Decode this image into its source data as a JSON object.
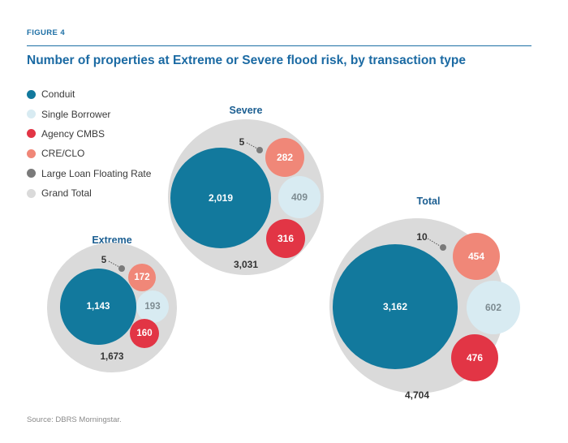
{
  "figure_label": "FIGURE 4",
  "title": "Number of properties at Extreme or Severe flood risk, by transaction type",
  "source": "Source: DBRS Morningstar.",
  "colors": {
    "accent": "#1d6fa5",
    "conduit": "#12799d",
    "single_borrower": "#d8ebf2",
    "agency_cmbs": "#e23545",
    "cre_clo": "#f08778",
    "large_loan": "#7a7a7a",
    "grand_total": "#dadada"
  },
  "legend": [
    {
      "label": "Conduit",
      "color": "#12799d"
    },
    {
      "label": "Single Borrower",
      "color": "#d8ebf2"
    },
    {
      "label": "Agency CMBS",
      "color": "#e23545"
    },
    {
      "label": "CRE/CLO",
      "color": "#f08778"
    },
    {
      "label": "Large Loan Floating Rate",
      "color": "#7a7a7a"
    },
    {
      "label": "Grand Total",
      "color": "#dadada"
    }
  ],
  "chart_data": {
    "type": "bubble",
    "series_names": [
      "Conduit",
      "Single Borrower",
      "Agency CMBS",
      "CRE/CLO",
      "Large Loan Floating Rate",
      "Grand Total"
    ],
    "groups": [
      {
        "title": "Extreme",
        "conduit": "1,143",
        "single_borrower": "193",
        "agency_cmbs": "160",
        "cre_clo": "172",
        "large_loan": "5",
        "grand_total": "1,673"
      },
      {
        "title": "Severe",
        "conduit": "2,019",
        "single_borrower": "409",
        "agency_cmbs": "316",
        "cre_clo": "282",
        "large_loan": "5",
        "grand_total": "3,031"
      },
      {
        "title": "Total",
        "conduit": "3,162",
        "single_borrower": "602",
        "agency_cmbs": "476",
        "cre_clo": "454",
        "large_loan": "10",
        "grand_total": "4,704"
      }
    ]
  }
}
